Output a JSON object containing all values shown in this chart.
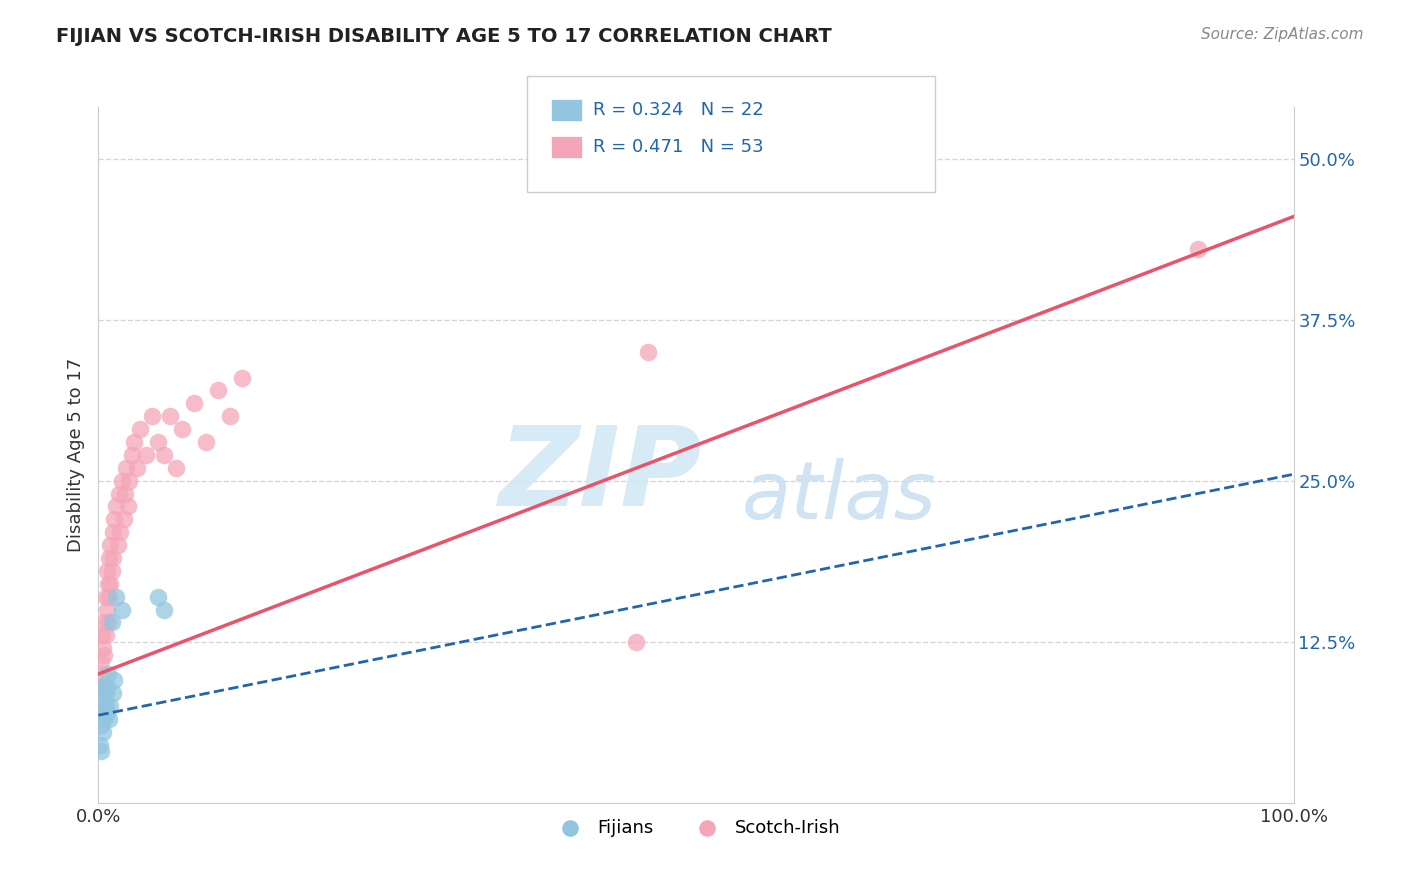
{
  "title": "FIJIAN VS SCOTCH-IRISH DISABILITY AGE 5 TO 17 CORRELATION CHART",
  "source_text": "Source: ZipAtlas.com",
  "ylabel": "Disability Age 5 to 17",
  "xlim": [
    0.0,
    1.0
  ],
  "ylim": [
    0.0,
    0.54
  ],
  "fijian_color": "#92c5de",
  "scotch_irish_color": "#f4a6b8",
  "fijian_line_color": "#2166ac",
  "scotch_irish_line_color": "#e8546a",
  "R_fijian": 0.324,
  "N_fijian": 22,
  "R_scotch_irish": 0.471,
  "N_scotch_irish": 53,
  "background_color": "#ffffff",
  "grid_color": "#cccccc",
  "legend_fijians": "Fijians",
  "legend_scotch_irish": "Scotch-Irish",
  "fijian_x": [
    0.001,
    0.002,
    0.002,
    0.003,
    0.003,
    0.004,
    0.004,
    0.005,
    0.006,
    0.006,
    0.007,
    0.007,
    0.008,
    0.009,
    0.01,
    0.011,
    0.012,
    0.013,
    0.015,
    0.02,
    0.05,
    0.055
  ],
  "fijian_y": [
    0.045,
    0.06,
    0.04,
    0.07,
    0.09,
    0.08,
    0.055,
    0.065,
    0.075,
    0.085,
    0.09,
    0.07,
    0.1,
    0.065,
    0.075,
    0.14,
    0.085,
    0.095,
    0.16,
    0.15,
    0.16,
    0.15
  ],
  "scotch_irish_x": [
    0.001,
    0.001,
    0.002,
    0.002,
    0.003,
    0.003,
    0.004,
    0.004,
    0.005,
    0.005,
    0.006,
    0.006,
    0.007,
    0.007,
    0.008,
    0.008,
    0.009,
    0.009,
    0.01,
    0.01,
    0.011,
    0.012,
    0.012,
    0.013,
    0.015,
    0.016,
    0.017,
    0.018,
    0.02,
    0.021,
    0.022,
    0.023,
    0.025,
    0.026,
    0.028,
    0.03,
    0.032,
    0.035,
    0.04,
    0.045,
    0.05,
    0.055,
    0.06,
    0.065,
    0.07,
    0.08,
    0.09,
    0.1,
    0.11,
    0.12,
    0.45,
    0.46,
    0.92
  ],
  "scotch_irish_y": [
    0.07,
    0.09,
    0.08,
    0.11,
    0.1,
    0.13,
    0.12,
    0.09,
    0.115,
    0.14,
    0.13,
    0.16,
    0.15,
    0.18,
    0.17,
    0.14,
    0.19,
    0.16,
    0.2,
    0.17,
    0.18,
    0.21,
    0.19,
    0.22,
    0.23,
    0.2,
    0.24,
    0.21,
    0.25,
    0.22,
    0.24,
    0.26,
    0.23,
    0.25,
    0.27,
    0.28,
    0.26,
    0.29,
    0.27,
    0.3,
    0.28,
    0.27,
    0.3,
    0.26,
    0.29,
    0.31,
    0.28,
    0.32,
    0.3,
    0.33,
    0.125,
    0.35,
    0.43
  ],
  "scotch_line_x0": 0.0,
  "scotch_line_y0": 0.1,
  "scotch_line_x1": 1.0,
  "scotch_line_y1": 0.455,
  "fijian_line_x0": 0.0,
  "fijian_line_y0": 0.068,
  "fijian_line_x1": 1.0,
  "fijian_line_y1": 0.255
}
